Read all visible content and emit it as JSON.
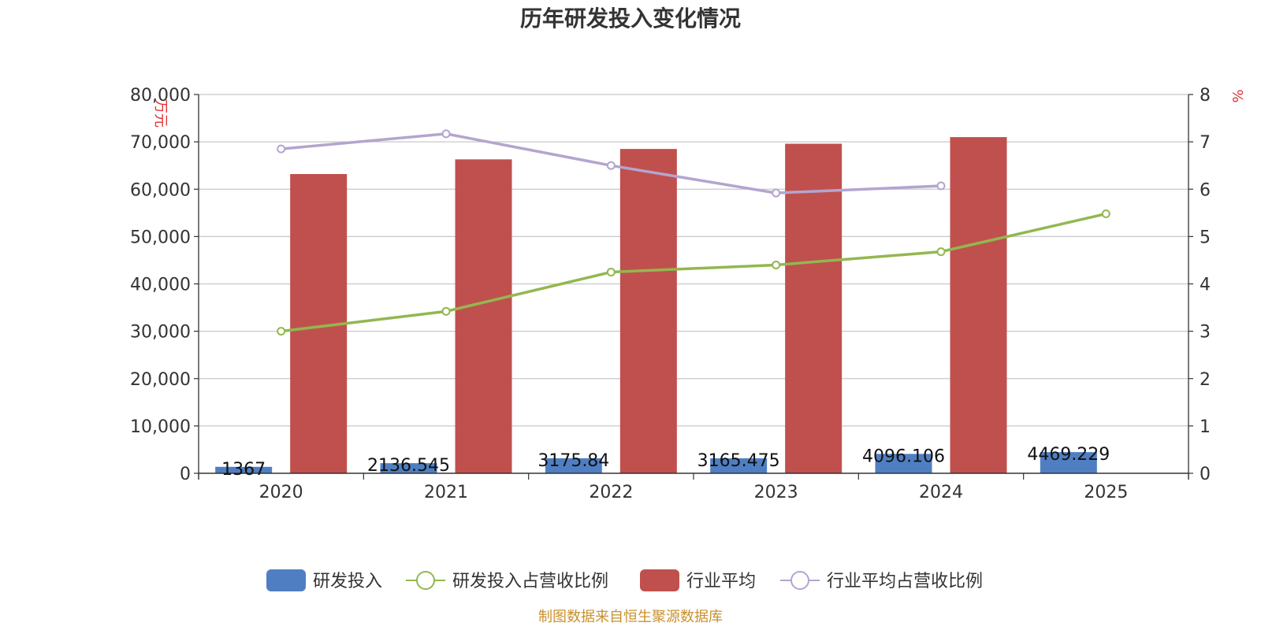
{
  "title": "历年研发投入变化情况",
  "source": "制图数据来自恒生聚源数据库",
  "chart_data": {
    "type": "bar",
    "categories": [
      "2020",
      "2021",
      "2022",
      "2023",
      "2024",
      "2025"
    ],
    "left_axis": {
      "unit": "万元",
      "ylim": [
        0,
        80000
      ],
      "ticks": [
        "0",
        "10,000",
        "20,000",
        "30,000",
        "40,000",
        "50,000",
        "60,000",
        "70,000",
        "80,000"
      ]
    },
    "right_axis": {
      "unit": "%",
      "ylim": [
        0,
        8
      ],
      "ticks": [
        "0",
        "1",
        "2",
        "3",
        "4",
        "5",
        "6",
        "7",
        "8"
      ]
    },
    "grid": true,
    "legend_position": "bottom-center",
    "series": [
      {
        "name": "研发投入",
        "kind": "bar",
        "axis": "left",
        "color": "#4f7fc2",
        "values": [
          1367,
          2136.545,
          3175.84,
          3165.475,
          4096.106,
          4469.229
        ],
        "labels": [
          "1367",
          "2136.545",
          "3175.84",
          "3165.475",
          "4096.106",
          "4469.229"
        ]
      },
      {
        "name": "研发投入占营收比例",
        "kind": "line",
        "axis": "right",
        "color": "#93b750",
        "values": [
          3.0,
          3.42,
          4.25,
          4.4,
          4.68,
          5.48
        ]
      },
      {
        "name": "行业平均",
        "kind": "bar",
        "axis": "left",
        "color": "#c0504d",
        "values": [
          63200,
          66300,
          68500,
          69600,
          71000,
          null
        ]
      },
      {
        "name": "行业平均占营收比例",
        "kind": "line",
        "axis": "right",
        "color": "#b3a5cf",
        "values": [
          6.85,
          7.17,
          6.5,
          5.92,
          6.07,
          null
        ]
      }
    ]
  }
}
